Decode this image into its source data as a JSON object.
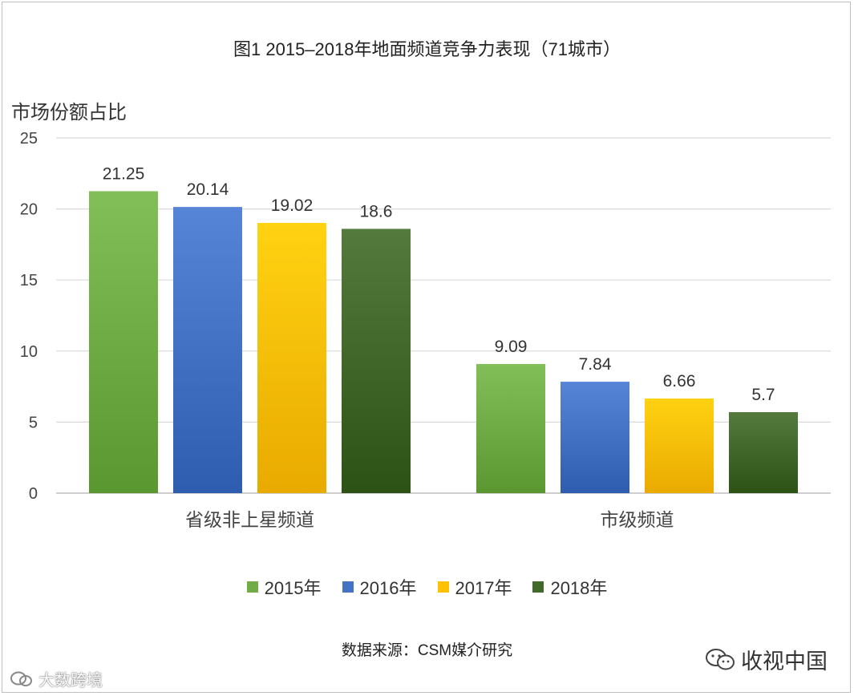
{
  "chart_data": {
    "type": "bar",
    "title": "图1  2015–2018年地面频道竞争力表现（71城市）",
    "ylabel": "市场份额占比",
    "xlabel": "",
    "ylim": [
      0,
      25
    ],
    "yticks": [
      0,
      5,
      10,
      15,
      20,
      25
    ],
    "grid": true,
    "categories": [
      "省级非上星频道",
      "市级频道"
    ],
    "series": [
      {
        "name": "2015年",
        "values": [
          21.25,
          9.09
        ],
        "labels": [
          "21.25",
          "9.09"
        ],
        "color": "#70ad47"
      },
      {
        "name": "2016年",
        "values": [
          20.14,
          7.84
        ],
        "labels": [
          "20.14",
          "7.84"
        ],
        "color": "#4472c4"
      },
      {
        "name": "2017年",
        "values": [
          19.02,
          6.66
        ],
        "labels": [
          "19.02",
          "6.66"
        ],
        "color": "#ffc000"
      },
      {
        "name": "2018年",
        "values": [
          18.6,
          5.7
        ],
        "labels": [
          "18.6",
          "5.7"
        ],
        "color": "#43682b"
      }
    ],
    "legend_position": "bottom"
  },
  "source": "数据来源：CSM媒介研究",
  "watermarks": {
    "left": "大数跨境",
    "right": "收视中国"
  },
  "icons": {
    "left": "wechat-logo-icon",
    "right": "wechat-logo-icon"
  }
}
